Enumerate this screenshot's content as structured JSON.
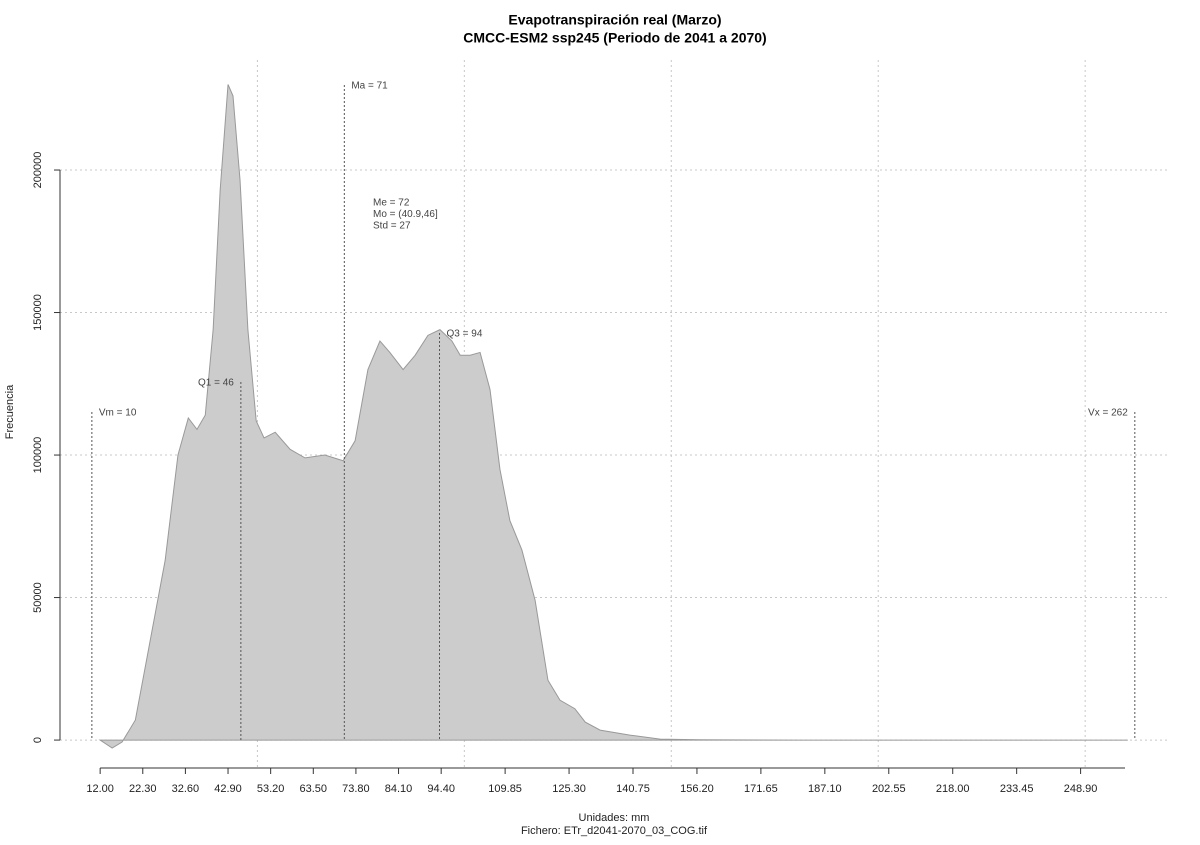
{
  "chart_data": {
    "type": "area",
    "title": "Evapotranspiración real (Marzo)",
    "subtitle": "CMCC-ESM2 ssp245 (Periodo de 2041 a 2070)",
    "x_label": "Unidades: mm",
    "caption": "Fichero: ETr_d2041-2070_03_COG.tif",
    "y_label": "Frecuencia",
    "color": "#cccccc",
    "line_color": "#999999",
    "grid": true,
    "x": [
      12,
      14.9,
      17.3,
      20.5,
      24.1,
      27.7,
      30.8,
      33.3,
      35.4,
      37.4,
      39.3,
      41.0,
      42.9,
      44.1,
      45.8,
      47.7,
      49.7,
      51.6,
      54.3,
      57.9,
      61.5,
      66.3,
      70.7,
      73.6,
      76.7,
      79.6,
      82.0,
      85.2,
      88.1,
      91.2,
      94.1,
      97.0,
      99.0,
      101.4,
      103.8,
      106.2,
      108.6,
      111.0,
      113.9,
      117.1,
      120.2,
      123.1,
      126.7,
      129.2,
      132.8,
      140.0,
      147.3,
      156.9,
      181.1,
      260.3
    ],
    "values": [
      0,
      -2800,
      -700,
      7000,
      35000,
      63000,
      100000,
      113000,
      109000,
      114000,
      144000,
      193000,
      230000,
      226000,
      196500,
      144000,
      112000,
      106000,
      108000,
      102000,
      99000,
      100000,
      98000,
      105000,
      130000,
      140000,
      136000,
      130000,
      135000,
      142000,
      144000,
      140000,
      135000,
      135000,
      136000,
      123000,
      95000,
      77000,
      66700,
      49000,
      21000,
      14000,
      11000,
      6300,
      3500,
      1750,
      350,
      100,
      0,
      0
    ],
    "xlim": [
      2.3,
      270.5
    ],
    "ylim": [
      -9800,
      238600
    ],
    "xticks": [
      {
        "value": 12,
        "label": "12.00"
      },
      {
        "value": 22.3,
        "label": "22.30"
      },
      {
        "value": 32.6,
        "label": "32.60"
      },
      {
        "value": 42.9,
        "label": "42.90"
      },
      {
        "value": 53.2,
        "label": "53.20"
      },
      {
        "value": 63.5,
        "label": "63.50"
      },
      {
        "value": 73.8,
        "label": "73.80"
      },
      {
        "value": 84.1,
        "label": "84.10"
      },
      {
        "value": 94.4,
        "label": "94.40"
      },
      109.85,
      {
        "value": 125.3,
        "label": "125.30"
      },
      140.75,
      {
        "value": 156.2,
        "label": "156.20"
      },
      171.65,
      {
        "value": 187.1,
        "label": "187.10"
      },
      202.55,
      {
        "value": 218,
        "label": "218.00"
      },
      233.45,
      {
        "value": 248.9,
        "label": "248.90"
      }
    ],
    "xgrid": [
      50,
      100,
      150,
      200,
      250
    ],
    "yticks": [
      0,
      50000,
      100000,
      150000,
      200000
    ],
    "markers": [
      {
        "label": "Vm = 10",
        "value": 10
      },
      {
        "label": "Q1 = 46",
        "value": 46
      },
      {
        "label": "Ma = 71",
        "value": 71
      },
      {
        "label": "Q3 = 94",
        "value": 94
      },
      {
        "label": "Vx = 262",
        "value": 262
      }
    ],
    "stats": [
      "Me = 72",
      "Mo = (40.9,46]",
      "Std = 27"
    ]
  }
}
